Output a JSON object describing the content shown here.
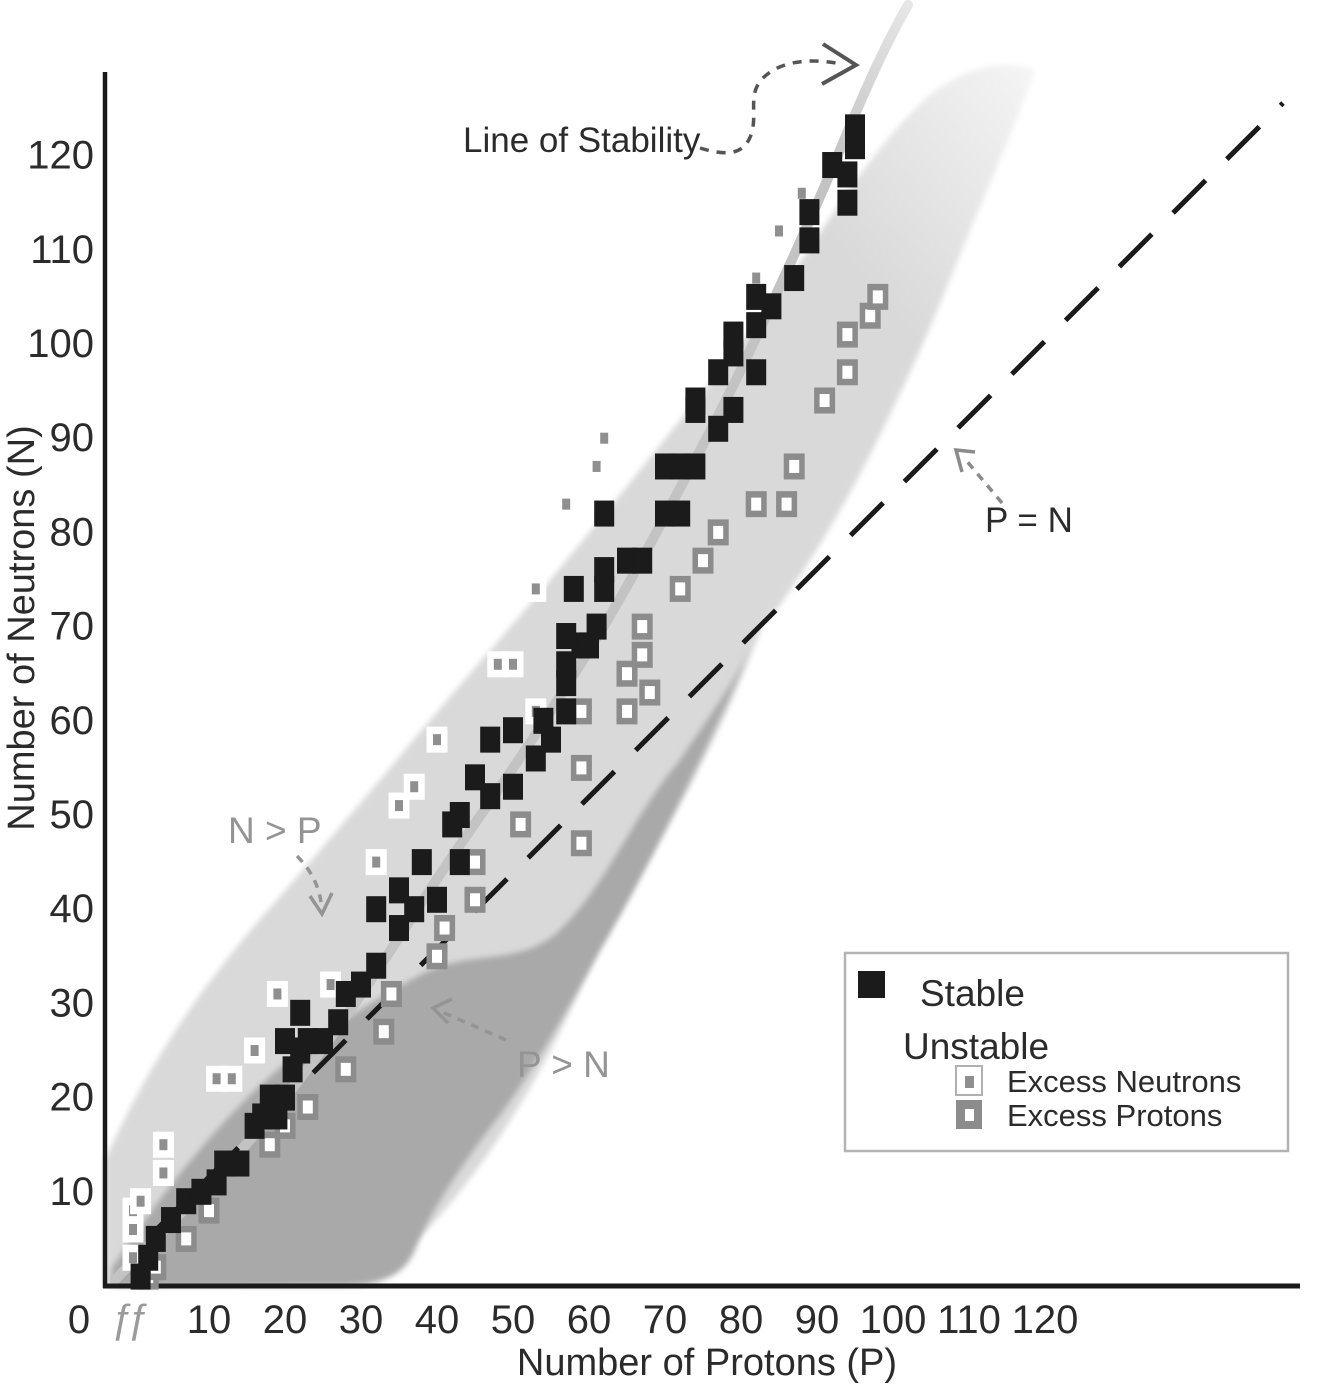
{
  "figure": {
    "kind": "band-of-stability scatter plot",
    "background": "#ffffff"
  },
  "axes": {
    "x_label": "Number of Protons (P)",
    "y_label": "Number of Neutrons (N)",
    "x_ticks": [
      0,
      10,
      20,
      30,
      40,
      50,
      60,
      70,
      80,
      90,
      100,
      110,
      120
    ],
    "y_ticks": [
      10,
      20,
      30,
      40,
      50,
      60,
      70,
      80,
      90,
      100,
      110,
      120
    ],
    "break_symbol": "ƒƒ"
  },
  "annotations": {
    "line_of_stability": "Line of Stability",
    "p_equals_n": "P = N",
    "n_greater_p": "N > P",
    "p_greater_n": "P > N"
  },
  "legend": {
    "stable_label": "Stable",
    "unstable_label": "Unstable",
    "excess_neutrons_label": "Excess Neutrons",
    "excess_protons_label": "Excess Protons"
  },
  "colors": {
    "band_light": "#d9d9d9",
    "band_dark": "#a9a9a9",
    "stability_line": "#c3c3c3",
    "stable_marker": "#1b1b1b",
    "proton_marker": "#8c8c8c",
    "neutron_dot": "#8f8f8f",
    "gray_text": "#949494",
    "black_text": "#2b2b2b",
    "pn_line": "#1a1a1a",
    "legend_border": "#b3b3b3"
  },
  "chart_data": {
    "type": "scatter",
    "title": "",
    "xlabel": "Number of Protons (P)",
    "ylabel": "Number of Neutrons (N)",
    "xlim": [
      0,
      125
    ],
    "ylim": [
      0,
      128
    ],
    "grid": false,
    "legend_position": "lower right",
    "x_axis_break_near_origin": true,
    "reference_line": "P = N diagonal (dashed)",
    "regions": [
      "N > P (light gray band)",
      "P > N (dark gray band)",
      "Line of Stability (gray curve)"
    ],
    "series": [
      {
        "name": "Stable",
        "marker": "solid black square",
        "points": [
          [
            1,
            1
          ],
          [
            2,
            3
          ],
          [
            3,
            5
          ],
          [
            5,
            7
          ],
          [
            7,
            9
          ],
          [
            9,
            10
          ],
          [
            11,
            11
          ],
          [
            12,
            13
          ],
          [
            14,
            13
          ],
          [
            16,
            17
          ],
          [
            17,
            18
          ],
          [
            19,
            18
          ],
          [
            18,
            20
          ],
          [
            20,
            20
          ],
          [
            21,
            23
          ],
          [
            22,
            25
          ],
          [
            20,
            26
          ],
          [
            23,
            26
          ],
          [
            25,
            26
          ],
          [
            27,
            28
          ],
          [
            22,
            29
          ],
          [
            28,
            31
          ],
          [
            30,
            32
          ],
          [
            32,
            34
          ],
          [
            35,
            38
          ],
          [
            32,
            40
          ],
          [
            37,
            40
          ],
          [
            40,
            41
          ],
          [
            35,
            42
          ],
          [
            38,
            45
          ],
          [
            43,
            45
          ],
          [
            42,
            49
          ],
          [
            43,
            50
          ],
          [
            47,
            52
          ],
          [
            50,
            53
          ],
          [
            45,
            54
          ],
          [
            53,
            56
          ],
          [
            47,
            58
          ],
          [
            55,
            58
          ],
          [
            50,
            59
          ],
          [
            54,
            60
          ],
          [
            57,
            61
          ],
          [
            57,
            64
          ],
          [
            57,
            66
          ],
          [
            59,
            68
          ],
          [
            60,
            68
          ],
          [
            57,
            69
          ],
          [
            61,
            70
          ],
          [
            58,
            74
          ],
          [
            62,
            74
          ],
          [
            62,
            76
          ],
          [
            65,
            77
          ],
          [
            67,
            77
          ],
          [
            62,
            82
          ],
          [
            70,
            82
          ],
          [
            72,
            82
          ],
          [
            70,
            87
          ],
          [
            72,
            87
          ],
          [
            74,
            87
          ],
          [
            77,
            91
          ],
          [
            74,
            93
          ],
          [
            79,
            93
          ],
          [
            74,
            94
          ],
          [
            77,
            97
          ],
          [
            82,
            97
          ],
          [
            79,
            99
          ],
          [
            79,
            101
          ],
          [
            82,
            102
          ],
          [
            84,
            104
          ],
          [
            82,
            105
          ],
          [
            87,
            107
          ],
          [
            89,
            111
          ],
          [
            89,
            114
          ],
          [
            94,
            115
          ],
          [
            94,
            118
          ],
          [
            92,
            119
          ],
          [
            95,
            121
          ],
          [
            95,
            123
          ]
        ]
      },
      {
        "name": "Unstable - Excess Neutrons",
        "marker": "white square with gray dot",
        "points": [
          [
            0,
            3
          ],
          [
            0,
            6
          ],
          [
            0,
            8
          ],
          [
            1,
            9
          ],
          [
            4,
            12
          ],
          [
            4,
            15
          ],
          [
            11,
            22
          ],
          [
            13,
            22
          ],
          [
            16,
            25
          ],
          [
            19,
            31
          ],
          [
            26,
            32
          ],
          [
            32,
            45
          ],
          [
            35,
            51
          ],
          [
            37,
            53
          ],
          [
            40,
            58
          ],
          [
            53,
            61
          ],
          [
            48,
            66
          ],
          [
            50,
            66
          ],
          [
            53,
            74
          ],
          [
            57,
            83
          ],
          [
            61,
            87
          ],
          [
            62,
            90
          ],
          [
            82,
            107
          ],
          [
            85,
            112
          ],
          [
            88,
            116
          ]
        ]
      },
      {
        "name": "Unstable - Excess Protons",
        "marker": "gray square with white dot",
        "points": [
          [
            2,
            1
          ],
          [
            3,
            2
          ],
          [
            7,
            5
          ],
          [
            10,
            8
          ],
          [
            18,
            15
          ],
          [
            20,
            17
          ],
          [
            23,
            19
          ],
          [
            28,
            23
          ],
          [
            33,
            27
          ],
          [
            34,
            31
          ],
          [
            40,
            35
          ],
          [
            41,
            38
          ],
          [
            45,
            41
          ],
          [
            45,
            45
          ],
          [
            51,
            49
          ],
          [
            59,
            47
          ],
          [
            59,
            55
          ],
          [
            59,
            61
          ],
          [
            65,
            61
          ],
          [
            68,
            63
          ],
          [
            65,
            65
          ],
          [
            67,
            67
          ],
          [
            67,
            70
          ],
          [
            72,
            74
          ],
          [
            75,
            77
          ],
          [
            77,
            80
          ],
          [
            82,
            83
          ],
          [
            86,
            83
          ],
          [
            87,
            87
          ],
          [
            91,
            94
          ],
          [
            94,
            97
          ],
          [
            94,
            101
          ],
          [
            97,
            103
          ],
          [
            98,
            105
          ]
        ]
      }
    ]
  }
}
